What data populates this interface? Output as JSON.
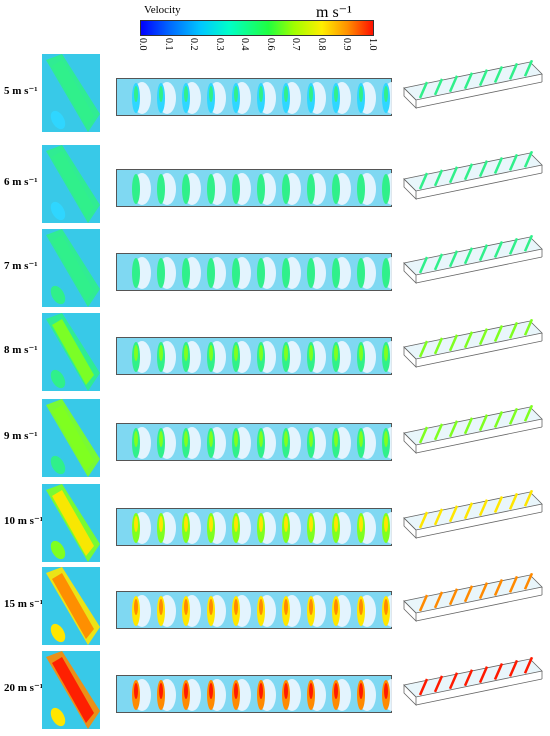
{
  "colorbar": {
    "title": "Velocity",
    "unit": "m s⁻¹",
    "ticks": [
      "0.0",
      "0.1",
      "0.2",
      "0.3",
      "0.4",
      "0.6",
      "0.7",
      "0.8",
      "0.9",
      "1.0"
    ]
  },
  "rows": [
    {
      "label": "5 m s⁻¹",
      "level": 0.3
    },
    {
      "label": "6 m s⁻¹",
      "level": 0.35
    },
    {
      "label": "7 m s⁻¹",
      "level": 0.4
    },
    {
      "label": "8 m s⁻¹",
      "level": 0.48
    },
    {
      "label": "9 m s⁻¹",
      "level": 0.55
    },
    {
      "label": "10 m s⁻¹",
      "level": 0.7
    },
    {
      "label": "15 m s⁻¹",
      "level": 0.9
    },
    {
      "label": "20 m s⁻¹",
      "level": 1.0
    }
  ]
}
